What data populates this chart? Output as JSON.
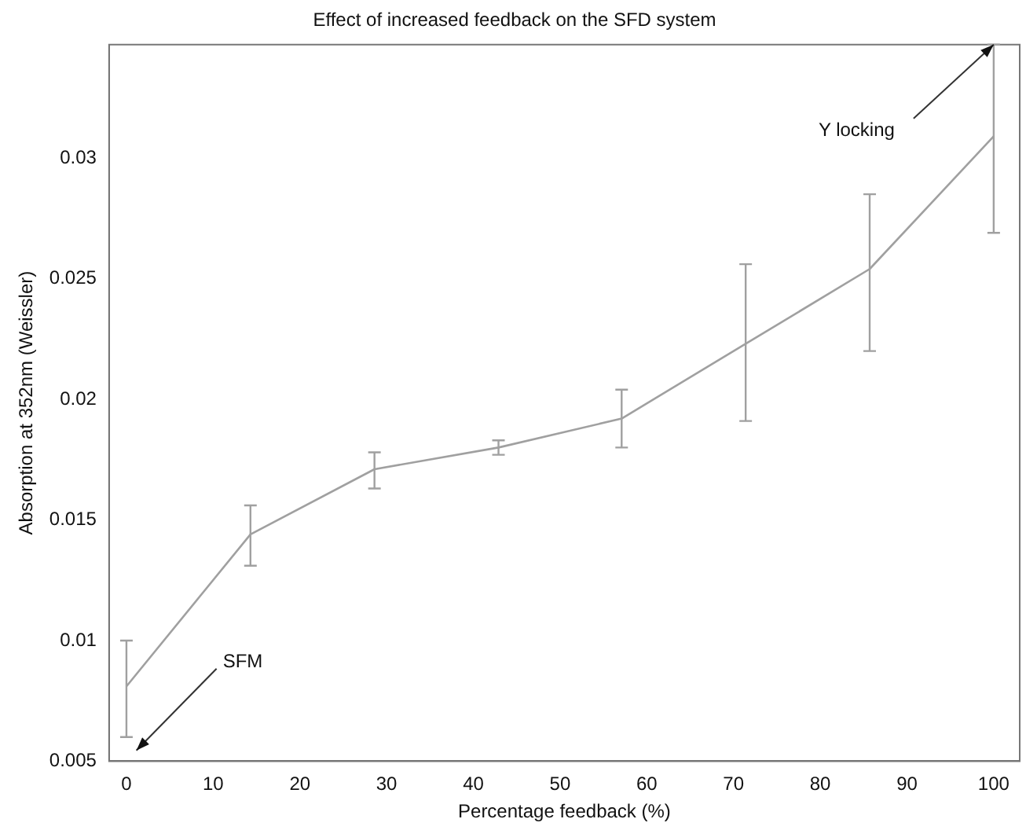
{
  "chart_data": {
    "type": "line",
    "title": "Effect of increased feedback on the SFD system",
    "xlabel": "Percentage feedback (%)",
    "ylabel": "Absorption at 352nm (Weissler)",
    "x": [
      0,
      14.3,
      28.6,
      42.9,
      57.1,
      71.4,
      85.7,
      100
    ],
    "series": [
      {
        "color": "#a0a0a0",
        "values": [
          0.0081,
          0.0144,
          0.0171,
          0.018,
          0.0192,
          0.0223,
          0.0254,
          0.0309
        ],
        "errors": [
          [
            0.006,
            0.01
          ],
          [
            0.0131,
            0.0156
          ],
          [
            0.0163,
            0.0178
          ],
          [
            0.0177,
            0.0183
          ],
          [
            0.018,
            0.0204
          ],
          [
            0.0191,
            0.0256
          ],
          [
            0.022,
            0.0285
          ],
          [
            0.0269,
            0.0347
          ]
        ]
      }
    ],
    "xlim": [
      -2,
      103
    ],
    "xticks": [
      0,
      10,
      20,
      30,
      40,
      50,
      60,
      70,
      80,
      90,
      100
    ],
    "ylim": [
      0.005,
      0.0347
    ],
    "yticks": [
      0.005,
      0.01,
      0.015,
      0.02,
      0.025,
      0.03
    ],
    "annotations": [
      "SFM",
      {
        "text": "Y locking",
        "x": 100,
        "y": 0.0347
      }
    ],
    "grid": false,
    "legend": false,
    "marker": "none",
    "line_style": "solid"
  }
}
